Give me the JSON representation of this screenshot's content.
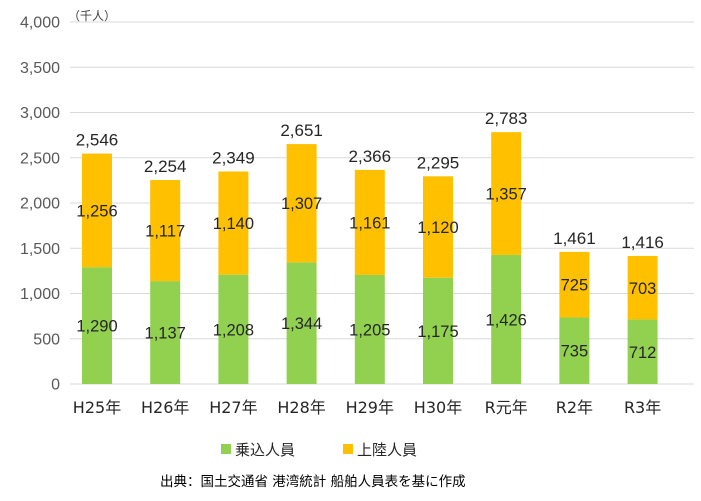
{
  "chart_data": {
    "type": "bar",
    "stacked": true,
    "unit": "（千人）",
    "categories": [
      "H25年",
      "H26年",
      "H27年",
      "H28年",
      "H29年",
      "H30年",
      "R元年",
      "R2年",
      "R3年"
    ],
    "series": [
      {
        "name": "乗込人員",
        "color": "#92d050",
        "values": [
          1290,
          1137,
          1208,
          1344,
          1205,
          1175,
          1426,
          735,
          712
        ]
      },
      {
        "name": "上陸人員",
        "color": "#ffc000",
        "values": [
          1256,
          1117,
          1140,
          1307,
          1161,
          1120,
          1357,
          725,
          703
        ]
      }
    ],
    "totals": [
      2546,
      2254,
      2349,
      2651,
      2366,
      2295,
      2783,
      1461,
      1416
    ],
    "ylim": [
      0,
      4000
    ],
    "yticks": [
      0,
      500,
      1000,
      1500,
      2000,
      2500,
      3000,
      3500,
      4000
    ],
    "ytick_labels": [
      "0",
      "500",
      "1,000",
      "1,500",
      "2,000",
      "2,500",
      "3,000",
      "3,500",
      "4,000"
    ],
    "grid": true,
    "legend_position": "bottom",
    "source": "出典：国土交通省 港湾統計 船舶人員表を基に作成"
  }
}
